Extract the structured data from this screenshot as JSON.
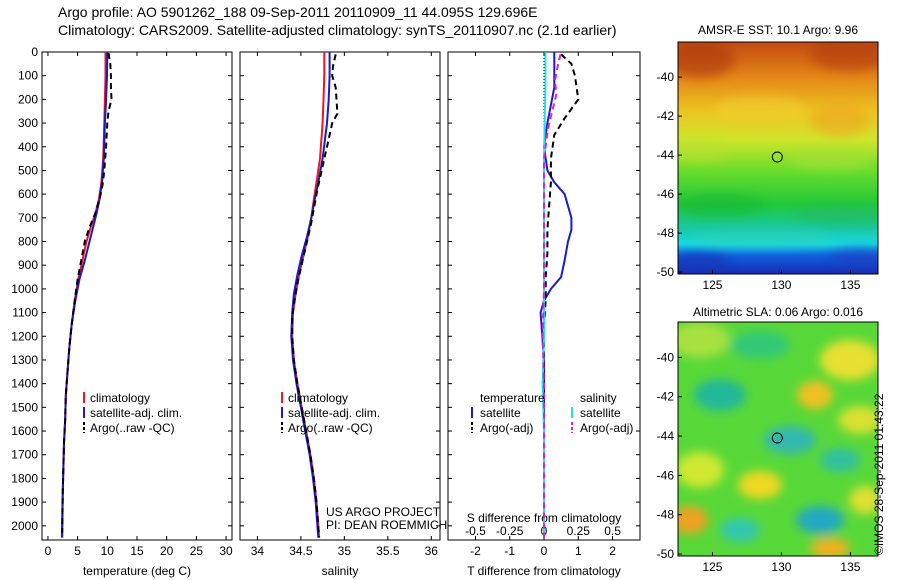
{
  "title_line1": "Argo profile: AO 5901262_188 09-Sep-2011 20110909_11 44.095S 129.696E",
  "title_line2": "Climatology: CARS2009. Satellite-adjusted climatology: synTS_20110907.nc (2.1d earlier)",
  "credit": "©IMOS 28-Sep-2011 01:43:22",
  "colors": {
    "climatology": "#e8181f",
    "satellite": "#1a1acc",
    "argo": "#000000",
    "sal_satellite": "#22e0e8",
    "sal_argo": "#e020d0"
  },
  "chart_data": [
    {
      "type": "line",
      "ylim": [
        0,
        2060
      ],
      "yticks": [
        0,
        100,
        200,
        300,
        400,
        500,
        600,
        700,
        800,
        900,
        1000,
        1100,
        1200,
        1300,
        1400,
        1500,
        1600,
        1700,
        1800,
        1900,
        2000
      ],
      "xlim": [
        -1,
        31
      ],
      "xticks": [
        0,
        5,
        10,
        15,
        20,
        25,
        30
      ],
      "xlabel": "temperature (deg C)",
      "legend": [
        "climatology",
        "satellite-adj. clim.",
        "Argo(..raw -QC)"
      ],
      "legend_position": "bottom-center",
      "series": [
        {
          "name": "climatology",
          "style": "solid",
          "color": "#e8181f",
          "points": [
            [
              9.7,
              0
            ],
            [
              9.7,
              100
            ],
            [
              9.6,
              200
            ],
            [
              9.5,
              300
            ],
            [
              9.3,
              450
            ],
            [
              9.0,
              550
            ],
            [
              8.6,
              620
            ],
            [
              8.0,
              680
            ],
            [
              7.2,
              740
            ],
            [
              6.5,
              800
            ],
            [
              5.8,
              880
            ],
            [
              5.1,
              960
            ],
            [
              4.5,
              1050
            ],
            [
              4.0,
              1150
            ],
            [
              3.6,
              1250
            ],
            [
              3.3,
              1350
            ],
            [
              3.0,
              1450
            ],
            [
              2.9,
              1550
            ],
            [
              2.7,
              1650
            ],
            [
              2.6,
              1750
            ],
            [
              2.5,
              1850
            ],
            [
              2.4,
              1950
            ],
            [
              2.35,
              2050
            ]
          ]
        },
        {
          "name": "satellite-adj. clim.",
          "style": "solid",
          "color": "#1a1acc",
          "points": [
            [
              10.0,
              0
            ],
            [
              9.95,
              100
            ],
            [
              9.8,
              200
            ],
            [
              9.6,
              300
            ],
            [
              9.4,
              450
            ],
            [
              9.1,
              550
            ],
            [
              8.7,
              620
            ],
            [
              8.2,
              680
            ],
            [
              7.6,
              740
            ],
            [
              7.0,
              800
            ],
            [
              6.2,
              880
            ],
            [
              5.3,
              960
            ],
            [
              4.6,
              1050
            ],
            [
              4.0,
              1150
            ],
            [
              3.6,
              1250
            ],
            [
              3.3,
              1350
            ],
            [
              3.0,
              1450
            ],
            [
              2.9,
              1550
            ],
            [
              2.7,
              1650
            ],
            [
              2.6,
              1750
            ],
            [
              2.5,
              1850
            ],
            [
              2.45,
              1950
            ],
            [
              2.4,
              2050
            ]
          ]
        },
        {
          "name": "Argo(..raw -QC)",
          "style": "dashed",
          "color": "#000000",
          "points": [
            [
              10.2,
              5
            ],
            [
              10.5,
              50
            ],
            [
              10.6,
              100
            ],
            [
              10.6,
              150
            ],
            [
              10.7,
              200
            ],
            [
              10.2,
              250
            ],
            [
              10.0,
              300
            ],
            [
              9.8,
              400
            ],
            [
              9.5,
              500
            ],
            [
              9.2,
              560
            ],
            [
              8.7,
              620
            ],
            [
              8.0,
              680
            ],
            [
              7.0,
              740
            ],
            [
              6.2,
              800
            ],
            [
              5.6,
              880
            ],
            [
              5.0,
              960
            ],
            [
              4.5,
              1050
            ],
            [
              4.0,
              1150
            ],
            [
              3.6,
              1250
            ],
            [
              3.3,
              1350
            ],
            [
              3.0,
              1450
            ],
            [
              2.9,
              1550
            ],
            [
              2.7,
              1650
            ],
            [
              2.6,
              1750
            ],
            [
              2.5,
              1850
            ],
            [
              2.45,
              1950
            ],
            [
              2.4,
              2030
            ]
          ]
        }
      ]
    },
    {
      "type": "line",
      "ylim": [
        0,
        2060
      ],
      "xlim": [
        33.8,
        36.1
      ],
      "xticks": [
        34,
        34.5,
        35,
        35.5,
        36
      ],
      "xlabel": "salinity",
      "legend": [
        "climatology",
        "satellite-adj. clim.",
        "Argo(..raw -QC)"
      ],
      "legend_position": "bottom-center",
      "annotation": [
        "US ARGO PROJECT",
        "PI: DEAN ROEMMICH"
      ],
      "series": [
        {
          "name": "climatology",
          "style": "solid",
          "color": "#e8181f",
          "points": [
            [
              34.77,
              0
            ],
            [
              34.77,
              100
            ],
            [
              34.76,
              200
            ],
            [
              34.75,
              300
            ],
            [
              34.72,
              450
            ],
            [
              34.68,
              550
            ],
            [
              34.65,
              620
            ],
            [
              34.62,
              700
            ],
            [
              34.58,
              780
            ],
            [
              34.53,
              860
            ],
            [
              34.48,
              940
            ],
            [
              34.44,
              1020
            ],
            [
              34.41,
              1100
            ],
            [
              34.4,
              1200
            ],
            [
              34.42,
              1300
            ],
            [
              34.46,
              1400
            ],
            [
              34.51,
              1500
            ],
            [
              34.56,
              1600
            ],
            [
              34.61,
              1700
            ],
            [
              34.65,
              1800
            ],
            [
              34.68,
              1900
            ],
            [
              34.7,
              2000
            ],
            [
              34.71,
              2050
            ]
          ]
        },
        {
          "name": "satellite-adj. clim.",
          "style": "solid",
          "color": "#1a1acc",
          "points": [
            [
              34.83,
              0
            ],
            [
              34.83,
              100
            ],
            [
              34.82,
              200
            ],
            [
              34.8,
              300
            ],
            [
              34.75,
              450
            ],
            [
              34.7,
              550
            ],
            [
              34.66,
              620
            ],
            [
              34.62,
              700
            ],
            [
              34.57,
              780
            ],
            [
              34.51,
              860
            ],
            [
              34.46,
              940
            ],
            [
              34.42,
              1020
            ],
            [
              34.4,
              1100
            ],
            [
              34.39,
              1200
            ],
            [
              34.41,
              1300
            ],
            [
              34.45,
              1400
            ],
            [
              34.5,
              1500
            ],
            [
              34.55,
              1600
            ],
            [
              34.6,
              1700
            ],
            [
              34.64,
              1800
            ],
            [
              34.67,
              1900
            ],
            [
              34.69,
              2000
            ],
            [
              34.7,
              2050
            ]
          ]
        },
        {
          "name": "Argo(..raw -QC)",
          "style": "dashed",
          "color": "#000000",
          "points": [
            [
              34.9,
              10
            ],
            [
              34.87,
              60
            ],
            [
              34.86,
              100
            ],
            [
              34.9,
              150
            ],
            [
              34.91,
              200
            ],
            [
              34.92,
              260
            ],
            [
              34.86,
              300
            ],
            [
              34.8,
              400
            ],
            [
              34.74,
              500
            ],
            [
              34.69,
              580
            ],
            [
              34.66,
              640
            ],
            [
              34.62,
              720
            ],
            [
              34.57,
              800
            ],
            [
              34.52,
              880
            ],
            [
              34.47,
              960
            ],
            [
              34.43,
              1040
            ],
            [
              34.4,
              1120
            ],
            [
              34.4,
              1200
            ],
            [
              34.42,
              1300
            ],
            [
              34.46,
              1400
            ],
            [
              34.51,
              1500
            ],
            [
              34.56,
              1600
            ],
            [
              34.61,
              1700
            ],
            [
              34.65,
              1800
            ],
            [
              34.68,
              1900
            ],
            [
              34.7,
              2000
            ],
            [
              34.71,
              2050
            ]
          ]
        }
      ]
    },
    {
      "type": "line",
      "ylim": [
        0,
        2060
      ],
      "xlim": [
        -2.8,
        2.8
      ],
      "xticks": [
        -2,
        -1,
        0,
        1,
        2
      ],
      "xlabel": "T difference from climatology",
      "top_axis_label": "S difference from climatology",
      "top_ticks": [
        -0.5,
        -0.25,
        0,
        0.25,
        0.5
      ],
      "top_tick_labels": [
        "-0.5",
        "-0.25",
        "0",
        "0.25",
        "0.5"
      ],
      "legend_left_title": "temperature",
      "legend_right_title": "salinity",
      "legend": [
        "satellite",
        "Argo(-adj)",
        "satellite",
        "Argo(-adj)"
      ],
      "legend_position": "bottom-center",
      "series": [
        {
          "name": "satellite",
          "style": "solid",
          "color": "#1a1acc",
          "points": [
            [
              0.3,
              0
            ],
            [
              0.3,
              150
            ],
            [
              0.1,
              300
            ],
            [
              0,
              400
            ],
            [
              0.1,
              500
            ],
            [
              0.3,
              550
            ],
            [
              0.6,
              600
            ],
            [
              0.7,
              650
            ],
            [
              0.8,
              700
            ],
            [
              0.8,
              750
            ],
            [
              0.7,
              800
            ],
            [
              0.6,
              880
            ],
            [
              0.5,
              950
            ],
            [
              0.2,
              1000
            ],
            [
              0,
              1050
            ],
            [
              -0.1,
              1100
            ],
            [
              -0.05,
              1200
            ],
            [
              0,
              1300
            ],
            [
              0,
              1500
            ],
            [
              0,
              2050
            ]
          ]
        },
        {
          "name": "Argo(-adj)",
          "style": "dashed",
          "color": "#000000",
          "points": [
            [
              0.5,
              10
            ],
            [
              0.8,
              50
            ],
            [
              0.9,
              100
            ],
            [
              1.0,
              200
            ],
            [
              0.6,
              280
            ],
            [
              0.3,
              350
            ],
            [
              0.2,
              450
            ],
            [
              0.2,
              550
            ],
            [
              0.15,
              650
            ],
            [
              0.1,
              750
            ],
            [
              0.1,
              850
            ],
            [
              0.05,
              950
            ],
            [
              0.05,
              1050
            ],
            [
              0,
              1150
            ],
            [
              0,
              1300
            ],
            [
              0,
              1600
            ],
            [
              0,
              2050
            ]
          ]
        },
        {
          "name": "satellite",
          "style": "solid",
          "color": "#22e0e8",
          "points": [
            [
              0.01,
              0
            ],
            [
              0.01,
              150
            ],
            [
              0.005,
              300
            ],
            [
              0,
              450
            ],
            [
              0,
              600
            ],
            [
              0,
              800
            ],
            [
              0,
              1000
            ],
            [
              0,
              1200
            ],
            [
              -0.01,
              1400
            ],
            [
              0,
              1600
            ],
            [
              0,
              2050
            ]
          ]
        },
        {
          "name": "Argo(-adj)",
          "style": "dashed",
          "color": "#e020d0",
          "points": [
            [
              0.12,
              10
            ],
            [
              0.1,
              60
            ],
            [
              0.08,
              120
            ],
            [
              0.09,
              180
            ],
            [
              0.06,
              250
            ],
            [
              0.03,
              320
            ],
            [
              0,
              450
            ],
            [
              0,
              600
            ],
            [
              0,
              800
            ],
            [
              0,
              1000
            ],
            [
              -0.01,
              1200
            ],
            [
              0,
              1400
            ],
            [
              0,
              1700
            ],
            [
              0,
              2050
            ]
          ]
        }
      ]
    },
    {
      "type": "heatmap",
      "title": "AMSR-E SST: 10.1 Argo: 9.96",
      "xticks": [
        125,
        130,
        135
      ],
      "yticks": [
        -40,
        -42,
        -44,
        -46,
        -48,
        -50
      ],
      "xlim": [
        122.5,
        137
      ],
      "ylim": [
        -50.1,
        -38.2
      ],
      "marker": [
        129.7,
        -44.1
      ]
    },
    {
      "type": "heatmap",
      "title": "Altimetric SLA: 0.06 Argo: 0.016",
      "xticks": [
        125,
        130,
        135
      ],
      "yticks": [
        -40,
        -42,
        -44,
        -46,
        -48,
        -50
      ],
      "xlim": [
        122.5,
        137
      ],
      "ylim": [
        -50.1,
        -38.2
      ],
      "marker": [
        129.7,
        -44.1
      ]
    }
  ]
}
